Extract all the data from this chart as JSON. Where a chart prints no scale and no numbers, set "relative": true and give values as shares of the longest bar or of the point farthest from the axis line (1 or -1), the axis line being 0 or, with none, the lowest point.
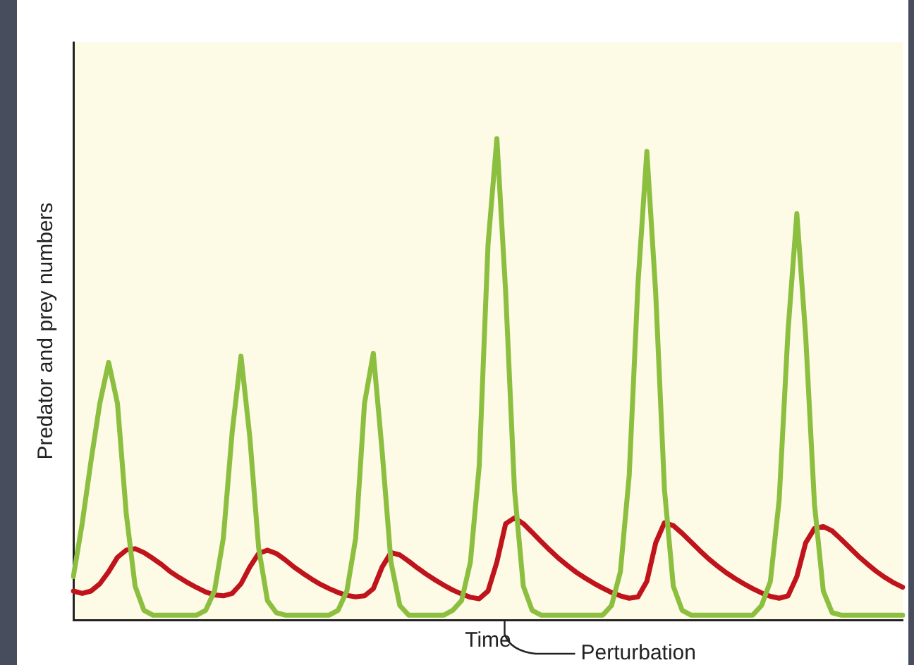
{
  "chart_data": {
    "type": "line",
    "relative": true,
    "xlabel": "Time",
    "ylabel": "Predator and prey numbers",
    "annotations": [
      "Perturbation"
    ],
    "grid": false,
    "legend": false,
    "marker": "none",
    "line_style": "solid",
    "categories": [
      null,
      null,
      null,
      null,
      null,
      null,
      null,
      null,
      null,
      null,
      null,
      null,
      null,
      null,
      null,
      null,
      null,
      null,
      null,
      null,
      null,
      null,
      null,
      null,
      null,
      null,
      null,
      null,
      null,
      null,
      null,
      null,
      null,
      null,
      null,
      null,
      null,
      null,
      null,
      null,
      null,
      null,
      null,
      null,
      null,
      null,
      null,
      null,
      null,
      null,
      null,
      null,
      null,
      null,
      null,
      null,
      null,
      null,
      null,
      null,
      null,
      null,
      null,
      null,
      null,
      null,
      null,
      null,
      null,
      null,
      null,
      null,
      null,
      null,
      null,
      null,
      null,
      null,
      null,
      null,
      null,
      null,
      null,
      null,
      null,
      null,
      null,
      null,
      null,
      null,
      null,
      null,
      null,
      null,
      null
    ],
    "series": [
      {
        "color": "#8cbf3f",
        "values": [
          0.09,
          0.2,
          0.33,
          0.45,
          0.535,
          0.45,
          0.22,
          0.07,
          0.02,
          0.01,
          0.01,
          0.01,
          0.01,
          0.01,
          0.01,
          0.02,
          0.06,
          0.17,
          0.39,
          0.548,
          0.38,
          0.15,
          0.04,
          0.015,
          0.01,
          0.01,
          0.01,
          0.01,
          0.01,
          0.01,
          0.02,
          0.06,
          0.17,
          0.45,
          0.554,
          0.35,
          0.12,
          0.03,
          0.01,
          0.01,
          0.01,
          0.01,
          0.01,
          0.02,
          0.04,
          0.12,
          0.32,
          0.78,
          1,
          0.68,
          0.27,
          0.07,
          0.02,
          0.01,
          0.01,
          0.01,
          0.01,
          0.01,
          0.01,
          0.01,
          0.01,
          0.03,
          0.1,
          0.3,
          0.7,
          0.973,
          0.68,
          0.27,
          0.07,
          0.02,
          0.01,
          0.01,
          0.01,
          0.01,
          0.01,
          0.01,
          0.01,
          0.01,
          0.03,
          0.08,
          0.25,
          0.6,
          0.844,
          0.59,
          0.24,
          0.06,
          0.015,
          0.01,
          0.01,
          0.01,
          0.01,
          0.01,
          0.01,
          0.01,
          0.01
        ]
      },
      {
        "color": "#c0141c",
        "values": [
          0.06,
          0.055,
          0.06,
          0.075,
          0.1,
          0.13,
          0.145,
          0.148,
          0.14,
          0.128,
          0.115,
          0.1,
          0.088,
          0.077,
          0.067,
          0.058,
          0.052,
          0.05,
          0.055,
          0.075,
          0.11,
          0.138,
          0.145,
          0.138,
          0.125,
          0.11,
          0.097,
          0.085,
          0.074,
          0.065,
          0.057,
          0.051,
          0.048,
          0.05,
          0.065,
          0.11,
          0.14,
          0.135,
          0.122,
          0.108,
          0.095,
          0.083,
          0.072,
          0.062,
          0.054,
          0.047,
          0.044,
          0.06,
          0.12,
          0.2,
          0.212,
          0.2,
          0.182,
          0.163,
          0.145,
          0.128,
          0.113,
          0.099,
          0.087,
          0.076,
          0.066,
          0.057,
          0.05,
          0.045,
          0.048,
          0.08,
          0.16,
          0.202,
          0.196,
          0.18,
          0.162,
          0.144,
          0.127,
          0.112,
          0.098,
          0.086,
          0.075,
          0.065,
          0.056,
          0.049,
          0.045,
          0.05,
          0.09,
          0.16,
          0.19,
          0.194,
          0.185,
          0.168,
          0.15,
          0.132,
          0.116,
          0.101,
          0.088,
          0.077,
          0.068
        ]
      }
    ]
  }
}
